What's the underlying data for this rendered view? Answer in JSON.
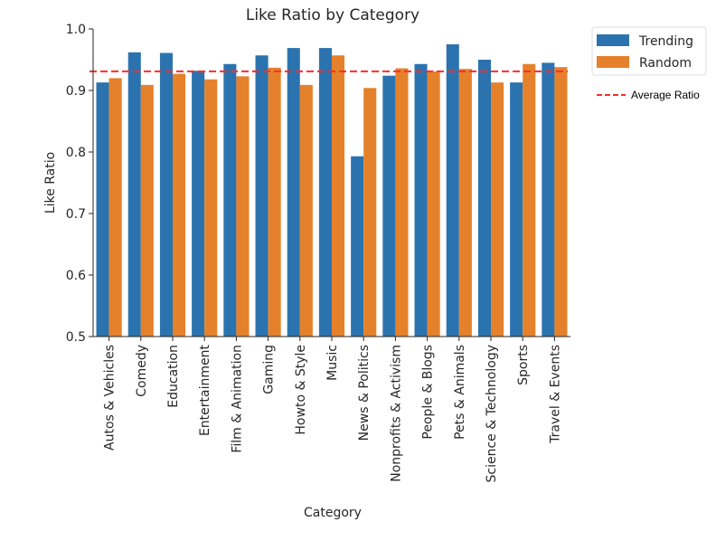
{
  "chart_data": {
    "type": "bar",
    "title": "Like Ratio by Category",
    "xlabel": "Category",
    "ylabel": "Like Ratio",
    "ylim": [
      0.5,
      1.0
    ],
    "yticks": [
      "0.5",
      "0.6",
      "0.7",
      "0.8",
      "0.9",
      "1.0"
    ],
    "categories": [
      "Autos & Vehicles",
      "Comedy",
      "Education",
      "Entertainment",
      "Film & Animation",
      "Gaming",
      "Howto & Style",
      "Music",
      "News & Politics",
      "Nonprofits & Activism",
      "People & Blogs",
      "Pets & Animals",
      "Science & Technology",
      "Sports",
      "Travel & Events"
    ],
    "series": [
      {
        "name": "Trending",
        "color": "#2b73ae",
        "values": [
          0.913,
          0.962,
          0.961,
          0.932,
          0.943,
          0.957,
          0.969,
          0.969,
          0.793,
          0.924,
          0.943,
          0.975,
          0.95,
          0.913,
          0.945
        ]
      },
      {
        "name": "Random",
        "color": "#e5812b",
        "values": [
          0.92,
          0.909,
          0.927,
          0.918,
          0.923,
          0.937,
          0.909,
          0.957,
          0.904,
          0.936,
          0.931,
          0.935,
          0.913,
          0.943,
          0.938
        ]
      }
    ],
    "reference_line": {
      "name": "Average Ratio",
      "value": 0.931,
      "color": "#ff2b2b",
      "style": "dashed"
    },
    "legend_position": "outside-right",
    "grid": false
  }
}
